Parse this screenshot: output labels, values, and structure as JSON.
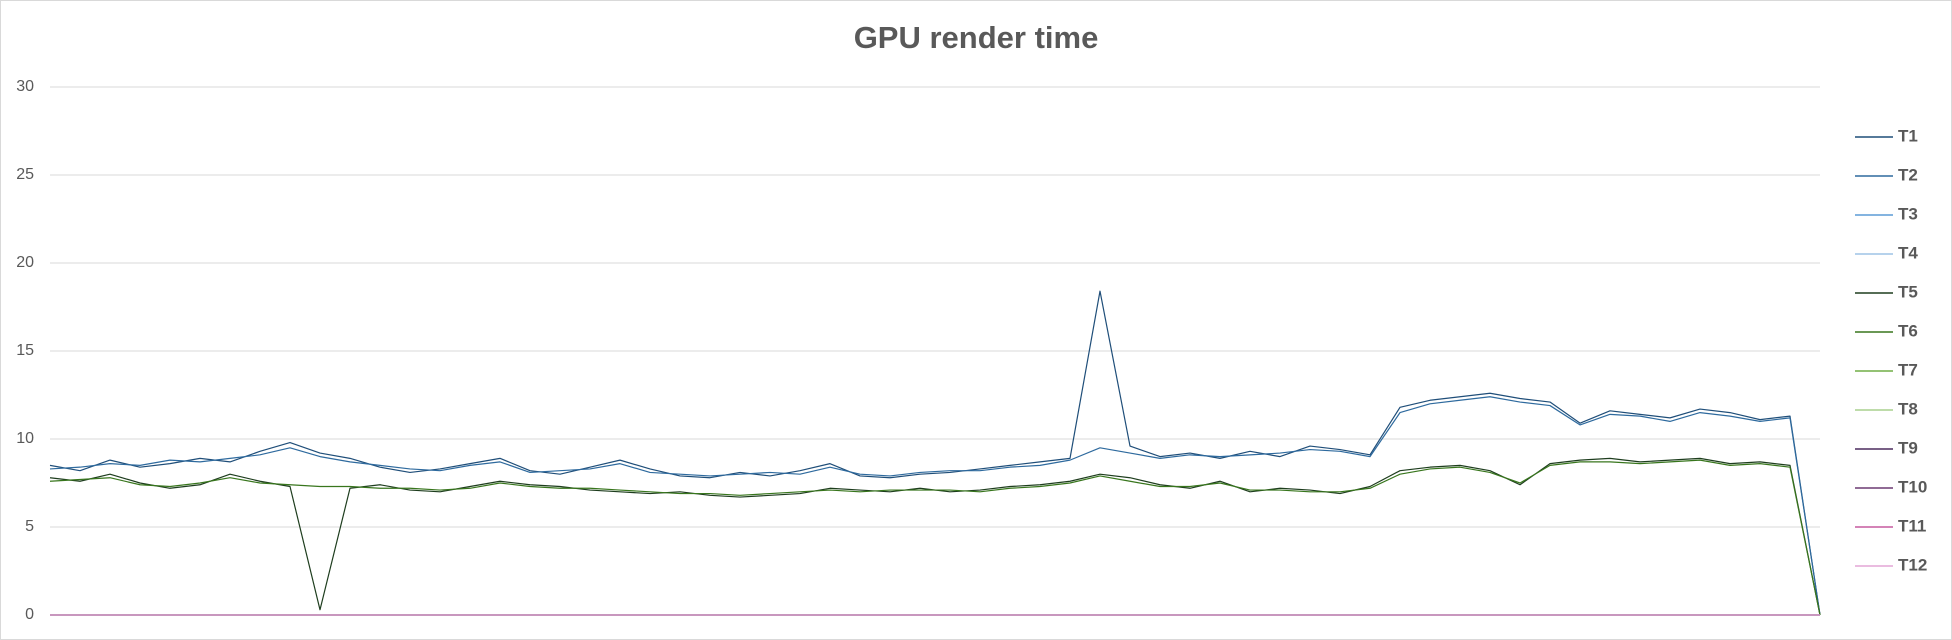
{
  "chart_data": {
    "type": "line",
    "title": "GPU render time",
    "categories": [
      null,
      null,
      null,
      null,
      null,
      null,
      null,
      null,
      null,
      null,
      null,
      null,
      null,
      null,
      null,
      null,
      null,
      null,
      null,
      null,
      null,
      null,
      null,
      null,
      null,
      null,
      null,
      null,
      null,
      null,
      null,
      null,
      null,
      null,
      null,
      null,
      null,
      null,
      null,
      null,
      null,
      null,
      null,
      null,
      null,
      null,
      null,
      null,
      null,
      null,
      null,
      null,
      null,
      null,
      null,
      null,
      null,
      null,
      null,
      null
    ],
    "ylim": [
      0,
      30
    ],
    "yticks": [
      0,
      5,
      10,
      15,
      20,
      25,
      30
    ],
    "grid": true,
    "legend": "right",
    "series": [
      {
        "name": "T1",
        "color": "#1f4e79",
        "values": [
          8.5,
          8.2,
          8.8,
          8.4,
          8.6,
          8.9,
          8.7,
          9.3,
          9.8,
          9.2,
          8.9,
          8.4,
          8.1,
          8.3,
          8.6,
          8.9,
          8.2,
          8.0,
          8.4,
          8.8,
          8.3,
          7.9,
          7.8,
          8.1,
          7.9,
          8.2,
          8.6,
          7.9,
          7.8,
          8.0,
          8.1,
          8.3,
          8.5,
          8.7,
          8.9,
          18.4,
          9.6,
          9.0,
          9.2,
          8.9,
          9.3,
          9.0,
          9.6,
          9.4,
          9.1,
          11.8,
          12.2,
          12.4,
          12.6,
          12.3,
          12.1,
          10.9,
          11.6,
          11.4,
          11.2,
          11.7,
          11.5,
          11.1,
          11.3,
          0
        ]
      },
      {
        "name": "T2",
        "color": "#2e6a9e",
        "values": [
          8.3,
          8.4,
          8.6,
          8.5,
          8.8,
          8.7,
          8.9,
          9.1,
          9.5,
          9.0,
          8.7,
          8.5,
          8.3,
          8.2,
          8.5,
          8.7,
          8.1,
          8.2,
          8.3,
          8.6,
          8.1,
          8.0,
          7.9,
          8.0,
          8.1,
          8.0,
          8.4,
          8.0,
          7.9,
          8.1,
          8.2,
          8.2,
          8.4,
          8.5,
          8.8,
          9.5,
          9.2,
          8.9,
          9.1,
          9.0,
          9.1,
          9.2,
          9.4,
          9.3,
          9.0,
          11.5,
          12.0,
          12.2,
          12.4,
          12.1,
          11.9,
          10.8,
          11.4,
          11.3,
          11.0,
          11.5,
          11.3,
          11.0,
          11.2,
          0
        ]
      },
      {
        "name": "T3",
        "color": "#5b9bd5",
        "values": [
          0,
          0,
          0,
          0,
          0,
          0,
          0,
          0,
          0,
          0,
          0,
          0,
          0,
          0,
          0,
          0,
          0,
          0,
          0,
          0,
          0,
          0,
          0,
          0,
          0,
          0,
          0,
          0,
          0,
          0,
          0,
          0,
          0,
          0,
          0,
          0,
          0,
          0,
          0,
          0,
          0,
          0,
          0,
          0,
          0,
          0,
          0,
          0,
          0,
          0,
          0,
          0,
          0,
          0,
          0,
          0,
          0,
          0,
          0,
          0
        ]
      },
      {
        "name": "T4",
        "color": "#9dc3e6",
        "values": [
          0,
          0,
          0,
          0,
          0,
          0,
          0,
          0,
          0,
          0,
          0,
          0,
          0,
          0,
          0,
          0,
          0,
          0,
          0,
          0,
          0,
          0,
          0,
          0,
          0,
          0,
          0,
          0,
          0,
          0,
          0,
          0,
          0,
          0,
          0,
          0,
          0,
          0,
          0,
          0,
          0,
          0,
          0,
          0,
          0,
          0,
          0,
          0,
          0,
          0,
          0,
          0,
          0,
          0,
          0,
          0,
          0,
          0,
          0,
          0
        ]
      },
      {
        "name": "T5",
        "color": "#1e3d1e",
        "values": [
          7.8,
          7.6,
          8.0,
          7.5,
          7.2,
          7.4,
          8.0,
          7.6,
          7.3,
          0.3,
          7.2,
          7.4,
          7.1,
          7.0,
          7.3,
          7.6,
          7.4,
          7.3,
          7.1,
          7.0,
          6.9,
          7.0,
          6.8,
          6.7,
          6.8,
          6.9,
          7.2,
          7.1,
          7.0,
          7.2,
          7.0,
          7.1,
          7.3,
          7.4,
          7.6,
          8.0,
          7.8,
          7.4,
          7.2,
          7.6,
          7.0,
          7.2,
          7.1,
          6.9,
          7.3,
          8.2,
          8.4,
          8.5,
          8.2,
          7.4,
          8.6,
          8.8,
          8.9,
          8.7,
          8.8,
          8.9,
          8.6,
          8.7,
          8.5,
          0
        ]
      },
      {
        "name": "T6",
        "color": "#38761d",
        "values": [
          7.6,
          7.7,
          7.8,
          7.4,
          7.3,
          7.5,
          7.8,
          7.5,
          7.4,
          7.3,
          7.3,
          7.2,
          7.2,
          7.1,
          7.2,
          7.5,
          7.3,
          7.2,
          7.2,
          7.1,
          7.0,
          6.9,
          6.9,
          6.8,
          6.9,
          7.0,
          7.1,
          7.0,
          7.1,
          7.1,
          7.1,
          7.0,
          7.2,
          7.3,
          7.5,
          7.9,
          7.6,
          7.3,
          7.3,
          7.5,
          7.1,
          7.1,
          7.0,
          7.0,
          7.2,
          8.0,
          8.3,
          8.4,
          8.1,
          7.5,
          8.5,
          8.7,
          8.7,
          8.6,
          8.7,
          8.8,
          8.5,
          8.6,
          8.4,
          0
        ]
      },
      {
        "name": "T7",
        "color": "#70ad47",
        "values": [
          0,
          0,
          0,
          0,
          0,
          0,
          0,
          0,
          0,
          0,
          0,
          0,
          0,
          0,
          0,
          0,
          0,
          0,
          0,
          0,
          0,
          0,
          0,
          0,
          0,
          0,
          0,
          0,
          0,
          0,
          0,
          0,
          0,
          0,
          0,
          0,
          0,
          0,
          0,
          0,
          0,
          0,
          0,
          0,
          0,
          0,
          0,
          0,
          0,
          0,
          0,
          0,
          0,
          0,
          0,
          0,
          0,
          0,
          0,
          0
        ]
      },
      {
        "name": "T8",
        "color": "#a9d18e",
        "values": [
          0,
          0,
          0,
          0,
          0,
          0,
          0,
          0,
          0,
          0,
          0,
          0,
          0,
          0,
          0,
          0,
          0,
          0,
          0,
          0,
          0,
          0,
          0,
          0,
          0,
          0,
          0,
          0,
          0,
          0,
          0,
          0,
          0,
          0,
          0,
          0,
          0,
          0,
          0,
          0,
          0,
          0,
          0,
          0,
          0,
          0,
          0,
          0,
          0,
          0,
          0,
          0,
          0,
          0,
          0,
          0,
          0,
          0,
          0,
          0
        ]
      },
      {
        "name": "T9",
        "color": "#4b2c5e",
        "values": [
          0,
          0,
          0,
          0,
          0,
          0,
          0,
          0,
          0,
          0,
          0,
          0,
          0,
          0,
          0,
          0,
          0,
          0,
          0,
          0,
          0,
          0,
          0,
          0,
          0,
          0,
          0,
          0,
          0,
          0,
          0,
          0,
          0,
          0,
          0,
          0,
          0,
          0,
          0,
          0,
          0,
          0,
          0,
          0,
          0,
          0,
          0,
          0,
          0,
          0,
          0,
          0,
          0,
          0,
          0,
          0,
          0,
          0,
          0,
          0
        ]
      },
      {
        "name": "T10",
        "color": "#6b3a72",
        "values": [
          0,
          0,
          0,
          0,
          0,
          0,
          0,
          0,
          0,
          0,
          0,
          0,
          0,
          0,
          0,
          0,
          0,
          0,
          0,
          0,
          0,
          0,
          0,
          0,
          0,
          0,
          0,
          0,
          0,
          0,
          0,
          0,
          0,
          0,
          0,
          0,
          0,
          0,
          0,
          0,
          0,
          0,
          0,
          0,
          0,
          0,
          0,
          0,
          0,
          0,
          0,
          0,
          0,
          0,
          0,
          0,
          0,
          0,
          0,
          0
        ]
      },
      {
        "name": "T11",
        "color": "#c55a9f",
        "values": [
          0,
          0,
          0,
          0,
          0,
          0,
          0,
          0,
          0,
          0,
          0,
          0,
          0,
          0,
          0,
          0,
          0,
          0,
          0,
          0,
          0,
          0,
          0,
          0,
          0,
          0,
          0,
          0,
          0,
          0,
          0,
          0,
          0,
          0,
          0,
          0,
          0,
          0,
          0,
          0,
          0,
          0,
          0,
          0,
          0,
          0,
          0,
          0,
          0,
          0,
          0,
          0,
          0,
          0,
          0,
          0,
          0,
          0,
          0,
          0
        ]
      },
      {
        "name": "T12",
        "color": "#e4a6d6",
        "values": [
          0,
          0,
          0,
          0,
          0,
          0,
          0,
          0,
          0,
          0,
          0,
          0,
          0,
          0,
          0,
          0,
          0,
          0,
          0,
          0,
          0,
          0,
          0,
          0,
          0,
          0,
          0,
          0,
          0,
          0,
          0,
          0,
          0,
          0,
          0,
          0,
          0,
          0,
          0,
          0,
          0,
          0,
          0,
          0,
          0,
          0,
          0,
          0,
          0,
          0,
          0,
          0,
          0,
          0,
          0,
          0,
          0,
          0,
          0,
          0
        ]
      }
    ]
  }
}
